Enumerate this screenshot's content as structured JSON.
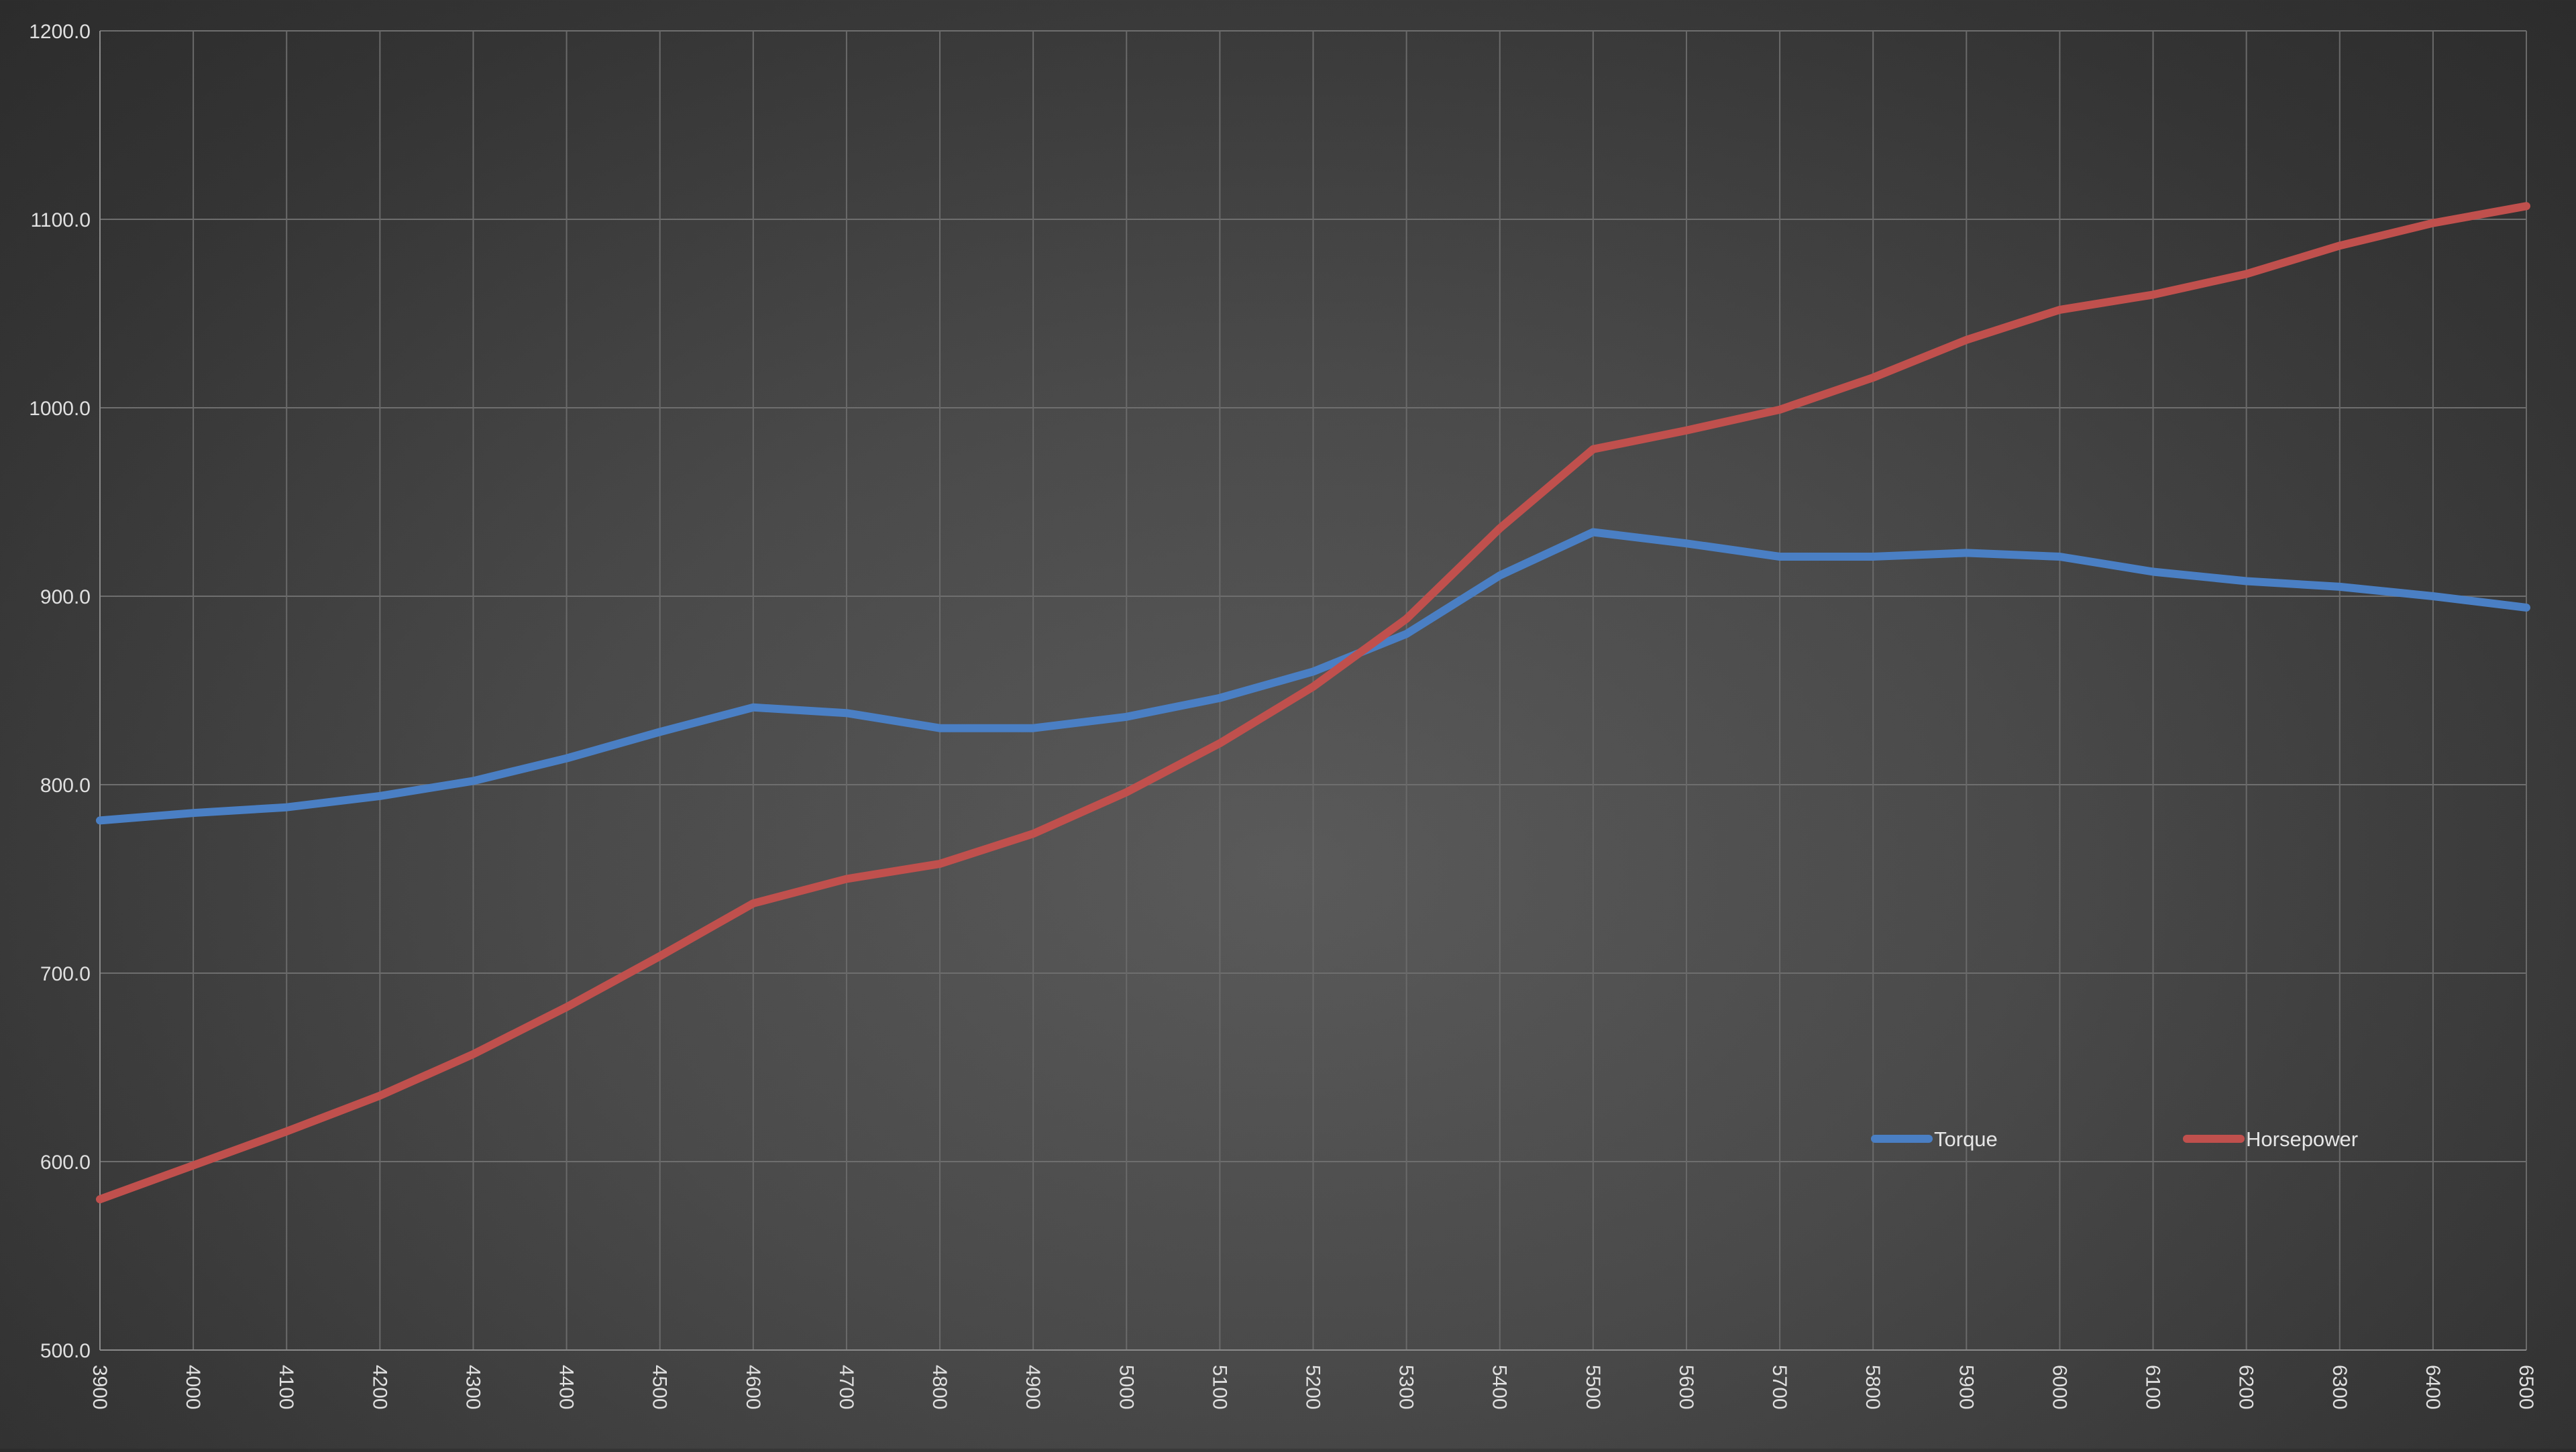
{
  "chart_data": {
    "type": "line",
    "title": "",
    "xlabel": "",
    "ylabel": "",
    "x": [
      3900,
      4000,
      4100,
      4200,
      4300,
      4400,
      4500,
      4600,
      4700,
      4800,
      4900,
      5000,
      5100,
      5200,
      5300,
      5400,
      5500,
      5600,
      5700,
      5800,
      5900,
      6000,
      6100,
      6200,
      6300,
      6400,
      6500
    ],
    "x_tick_labels": [
      "3900",
      "4000",
      "4100",
      "4200",
      "4300",
      "4400",
      "4500",
      "4600",
      "4700",
      "4800",
      "4900",
      "5000",
      "5100",
      "5200",
      "5300",
      "5400",
      "5500",
      "5600",
      "5700",
      "5800",
      "5900",
      "6000",
      "6100",
      "6200",
      "6300",
      "6400",
      "6500"
    ],
    "y_ticks": [
      500,
      600,
      700,
      800,
      900,
      1000,
      1100,
      1200
    ],
    "y_tick_labels": [
      "500.0",
      "600.0",
      "700.0",
      "800.0",
      "900.0",
      "1000.0",
      "1100.0",
      "1200.0"
    ],
    "ylim": [
      500,
      1200
    ],
    "grid": true,
    "legend_position": "bottom-right",
    "series": [
      {
        "name": "Torque",
        "color": "#4a7fc4",
        "values": [
          781,
          785,
          788,
          794,
          802,
          814,
          828,
          841,
          838,
          830,
          830,
          836,
          846,
          860,
          880,
          911,
          934,
          928,
          921,
          921,
          923,
          921,
          913,
          908,
          905,
          900,
          894
        ]
      },
      {
        "name": "Horsepower",
        "color": "#c0504d",
        "values": [
          580,
          598,
          616,
          635,
          657,
          682,
          709,
          737,
          750,
          758,
          774,
          796,
          822,
          852,
          888,
          936,
          978,
          988,
          999,
          1016,
          1036,
          1052,
          1060,
          1071,
          1086,
          1098,
          1107
        ]
      }
    ]
  }
}
